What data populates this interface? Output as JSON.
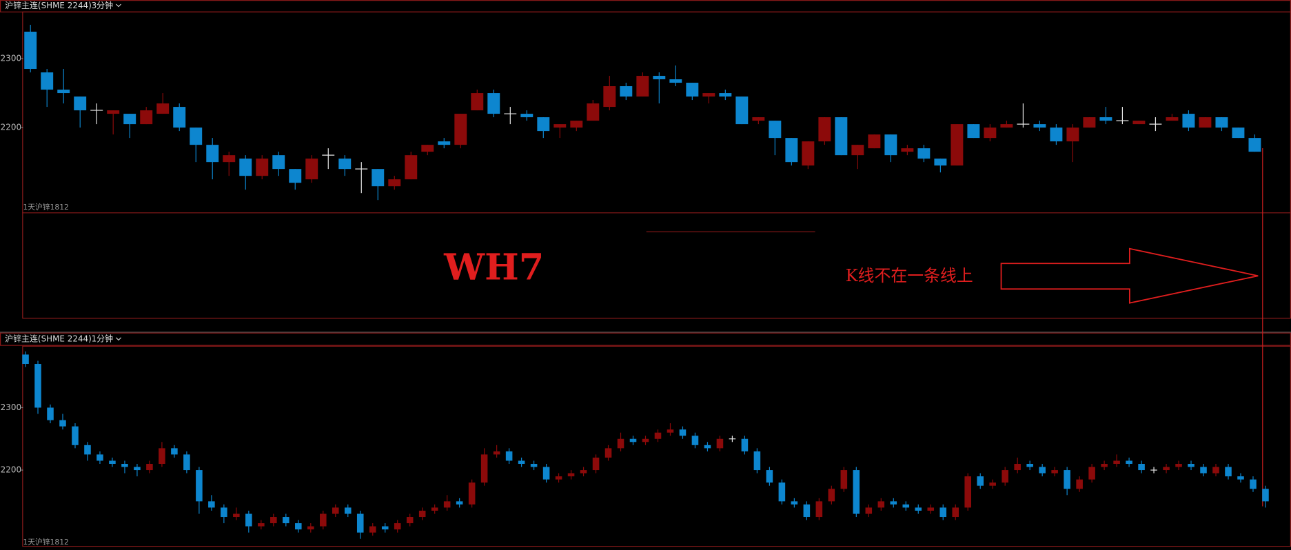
{
  "top_panel": {
    "symbol": "沪锌主连(SHME 2244)",
    "period": "3分钟",
    "legend": "1天沪锌1812",
    "ylim": [
      22077,
      22367
    ],
    "yticks": [
      22300,
      22200
    ],
    "candles": [
      [
        22339,
        22349,
        22280,
        22285
      ],
      [
        22280,
        22285,
        22230,
        22255
      ],
      [
        22255,
        22285,
        22235,
        22250
      ],
      [
        22245,
        22245,
        22200,
        22225
      ],
      [
        22225,
        22235,
        22205,
        22225
      ],
      [
        22220,
        22225,
        22190,
        22225
      ],
      [
        22220,
        22220,
        22185,
        22205
      ],
      [
        22205,
        22230,
        22205,
        22225
      ],
      [
        22220,
        22250,
        22220,
        22235
      ],
      [
        22230,
        22235,
        22195,
        22200
      ],
      [
        22200,
        22200,
        22150,
        22175
      ],
      [
        22175,
        22185,
        22125,
        22150
      ],
      [
        22150,
        22165,
        22130,
        22160
      ],
      [
        22155,
        22160,
        22110,
        22130
      ],
      [
        22130,
        22160,
        22125,
        22155
      ],
      [
        22160,
        22165,
        22130,
        22140
      ],
      [
        22140,
        22140,
        22110,
        22120
      ],
      [
        22125,
        22160,
        22120,
        22155
      ],
      [
        22160,
        22170,
        22140,
        22160
      ],
      [
        22155,
        22160,
        22130,
        22140
      ],
      [
        22140,
        22150,
        22105,
        22140
      ],
      [
        22140,
        22140,
        22095,
        22115
      ],
      [
        22115,
        22130,
        22110,
        22125
      ],
      [
        22125,
        22165,
        22125,
        22160
      ],
      [
        22165,
        22175,
        22160,
        22175
      ],
      [
        22180,
        22185,
        22170,
        22175
      ],
      [
        22175,
        22220,
        22170,
        22220
      ],
      [
        22225,
        22255,
        22225,
        22250
      ],
      [
        22250,
        22255,
        22215,
        22220
      ],
      [
        22220,
        22230,
        22205,
        22220
      ],
      [
        22220,
        22225,
        22210,
        22215
      ],
      [
        22215,
        22215,
        22185,
        22195
      ],
      [
        22200,
        22205,
        22185,
        22205
      ],
      [
        22200,
        22210,
        22195,
        22210
      ],
      [
        22210,
        22240,
        22210,
        22235
      ],
      [
        22230,
        22275,
        22225,
        22260
      ],
      [
        22260,
        22265,
        22240,
        22245
      ],
      [
        22245,
        22280,
        22245,
        22275
      ],
      [
        22275,
        22280,
        22235,
        22270
      ],
      [
        22270,
        22290,
        22260,
        22265
      ],
      [
        22265,
        22265,
        22240,
        22245
      ],
      [
        22245,
        22250,
        22235,
        22250
      ],
      [
        22250,
        22255,
        22240,
        22245
      ],
      [
        22245,
        22245,
        22205,
        22205
      ],
      [
        22210,
        22215,
        22205,
        22215
      ],
      [
        22210,
        22210,
        22160,
        22185
      ],
      [
        22185,
        22185,
        22145,
        22150
      ],
      [
        22145,
        22180,
        22140,
        22180
      ],
      [
        22180,
        22215,
        22175,
        22215
      ],
      [
        22215,
        22215,
        22160,
        22160
      ],
      [
        22160,
        22175,
        22140,
        22175
      ],
      [
        22170,
        22190,
        22170,
        22190
      ],
      [
        22190,
        22190,
        22150,
        22160
      ],
      [
        22165,
        22175,
        22160,
        22170
      ],
      [
        22170,
        22175,
        22150,
        22155
      ],
      [
        22155,
        22155,
        22135,
        22145
      ],
      [
        22145,
        22205,
        22145,
        22205
      ],
      [
        22205,
        22205,
        22185,
        22185
      ],
      [
        22185,
        22205,
        22180,
        22200
      ],
      [
        22200,
        22210,
        22200,
        22205
      ],
      [
        22205,
        22235,
        22200,
        22205
      ],
      [
        22205,
        22210,
        22195,
        22200
      ],
      [
        22200,
        22205,
        22175,
        22180
      ],
      [
        22180,
        22205,
        22150,
        22200
      ],
      [
        22200,
        22215,
        22200,
        22215
      ],
      [
        22215,
        22230,
        22205,
        22210
      ],
      [
        22210,
        22230,
        22205,
        22210
      ],
      [
        22205,
        22210,
        22205,
        22210
      ],
      [
        22205,
        22215,
        22195,
        22205
      ],
      [
        22210,
        22220,
        22210,
        22215
      ],
      [
        22220,
        22225,
        22195,
        22200
      ],
      [
        22200,
        22215,
        22200,
        22215
      ],
      [
        22215,
        22215,
        22195,
        22200
      ],
      [
        22200,
        22200,
        22185,
        22185
      ],
      [
        22185,
        22190,
        22165,
        22165
      ]
    ]
  },
  "annotation": {
    "title": "WH7",
    "note": "K线不在一条线上"
  },
  "bottom_panel": {
    "symbol": "沪锌主连(SHME 2244)",
    "period": "1分钟",
    "legend": "1天沪锌1812",
    "ylim": [
      22080,
      22399
    ],
    "yticks": [
      22300,
      22200
    ],
    "candles": [
      [
        22385,
        22390,
        22365,
        22370
      ],
      [
        22370,
        22375,
        22290,
        22300
      ],
      [
        22300,
        22305,
        22275,
        22280
      ],
      [
        22280,
        22290,
        22265,
        22270
      ],
      [
        22270,
        22275,
        22235,
        22240
      ],
      [
        22240,
        22245,
        22215,
        22225
      ],
      [
        22225,
        22230,
        22210,
        22215
      ],
      [
        22215,
        22220,
        22205,
        22210
      ],
      [
        22210,
        22215,
        22195,
        22205
      ],
      [
        22205,
        22210,
        22190,
        22200
      ],
      [
        22200,
        22215,
        22195,
        22210
      ],
      [
        22210,
        22245,
        22205,
        22235
      ],
      [
        22235,
        22240,
        22220,
        22225
      ],
      [
        22225,
        22230,
        22195,
        22200
      ],
      [
        22200,
        22205,
        22130,
        22150
      ],
      [
        22150,
        22160,
        22135,
        22140
      ],
      [
        22140,
        22145,
        22115,
        22125
      ],
      [
        22125,
        22140,
        22120,
        22130
      ],
      [
        22130,
        22135,
        22100,
        22110
      ],
      [
        22110,
        22120,
        22105,
        22115
      ],
      [
        22115,
        22130,
        22110,
        22125
      ],
      [
        22125,
        22130,
        22110,
        22115
      ],
      [
        22115,
        22120,
        22100,
        22105
      ],
      [
        22105,
        22115,
        22100,
        22110
      ],
      [
        22110,
        22135,
        22105,
        22130
      ],
      [
        22130,
        22145,
        22125,
        22140
      ],
      [
        22140,
        22145,
        22125,
        22130
      ],
      [
        22130,
        22135,
        22090,
        22100
      ],
      [
        22100,
        22115,
        22095,
        22110
      ],
      [
        22110,
        22115,
        22100,
        22105
      ],
      [
        22105,
        22120,
        22100,
        22115
      ],
      [
        22115,
        22130,
        22110,
        22125
      ],
      [
        22125,
        22140,
        22120,
        22135
      ],
      [
        22135,
        22145,
        22130,
        22140
      ],
      [
        22140,
        22160,
        22135,
        22150
      ],
      [
        22150,
        22155,
        22140,
        22145
      ],
      [
        22145,
        22185,
        22140,
        22180
      ],
      [
        22180,
        22235,
        22175,
        22225
      ],
      [
        22225,
        22240,
        22220,
        22230
      ],
      [
        22230,
        22235,
        22210,
        22215
      ],
      [
        22215,
        22220,
        22205,
        22210
      ],
      [
        22210,
        22215,
        22200,
        22205
      ],
      [
        22205,
        22210,
        22180,
        22185
      ],
      [
        22185,
        22195,
        22180,
        22190
      ],
      [
        22190,
        22200,
        22185,
        22195
      ],
      [
        22195,
        22205,
        22190,
        22200
      ],
      [
        22200,
        22225,
        22195,
        22220
      ],
      [
        22220,
        22240,
        22215,
        22235
      ],
      [
        22235,
        22260,
        22230,
        22250
      ],
      [
        22250,
        22255,
        22240,
        22245
      ],
      [
        22245,
        22255,
        22240,
        22250
      ],
      [
        22250,
        22265,
        22245,
        22260
      ],
      [
        22260,
        22275,
        22255,
        22265
      ],
      [
        22265,
        22270,
        22250,
        22255
      ],
      [
        22255,
        22260,
        22235,
        22240
      ],
      [
        22240,
        22245,
        22230,
        22235
      ],
      [
        22235,
        22255,
        22230,
        22250
      ],
      [
        22250,
        22255,
        22245,
        22250
      ],
      [
        22250,
        22255,
        22225,
        22230
      ],
      [
        22230,
        22235,
        22195,
        22200
      ],
      [
        22200,
        22205,
        22175,
        22180
      ],
      [
        22180,
        22185,
        22145,
        22150
      ],
      [
        22150,
        22155,
        22140,
        22145
      ],
      [
        22145,
        22150,
        22120,
        22125
      ],
      [
        22125,
        22155,
        22120,
        22150
      ],
      [
        22150,
        22175,
        22145,
        22170
      ],
      [
        22170,
        22205,
        22165,
        22200
      ],
      [
        22200,
        22205,
        22125,
        22130
      ],
      [
        22130,
        22145,
        22125,
        22140
      ],
      [
        22140,
        22155,
        22135,
        22150
      ],
      [
        22150,
        22155,
        22140,
        22145
      ],
      [
        22145,
        22150,
        22135,
        22140
      ],
      [
        22140,
        22145,
        22130,
        22135
      ],
      [
        22135,
        22145,
        22130,
        22140
      ],
      [
        22140,
        22145,
        22120,
        22125
      ],
      [
        22125,
        22145,
        22120,
        22140
      ],
      [
        22140,
        22195,
        22135,
        22190
      ],
      [
        22190,
        22195,
        22170,
        22175
      ],
      [
        22175,
        22185,
        22170,
        22180
      ],
      [
        22180,
        22205,
        22175,
        22200
      ],
      [
        22200,
        22220,
        22195,
        22210
      ],
      [
        22210,
        22215,
        22200,
        22205
      ],
      [
        22205,
        22210,
        22190,
        22195
      ],
      [
        22195,
        22205,
        22190,
        22200
      ],
      [
        22200,
        22205,
        22160,
        22170
      ],
      [
        22170,
        22190,
        22165,
        22185
      ],
      [
        22185,
        22210,
        22180,
        22205
      ],
      [
        22205,
        22215,
        22200,
        22210
      ],
      [
        22210,
        22225,
        22205,
        22215
      ],
      [
        22215,
        22220,
        22205,
        22210
      ],
      [
        22210,
        22215,
        22195,
        22200
      ],
      [
        22200,
        22205,
        22195,
        22200
      ],
      [
        22200,
        22210,
        22195,
        22205
      ],
      [
        22205,
        22215,
        22200,
        22210
      ],
      [
        22210,
        22215,
        22200,
        22205
      ],
      [
        22205,
        22210,
        22190,
        22195
      ],
      [
        22195,
        22210,
        22190,
        22205
      ],
      [
        22205,
        22210,
        22185,
        22190
      ],
      [
        22190,
        22195,
        22180,
        22185
      ],
      [
        22185,
        22190,
        22165,
        22170
      ],
      [
        22170,
        22175,
        22140,
        22150
      ]
    ]
  },
  "colors": {
    "up": "#8c0a0a",
    "down": "#0d86cf",
    "doji": "#e6e6e6"
  }
}
